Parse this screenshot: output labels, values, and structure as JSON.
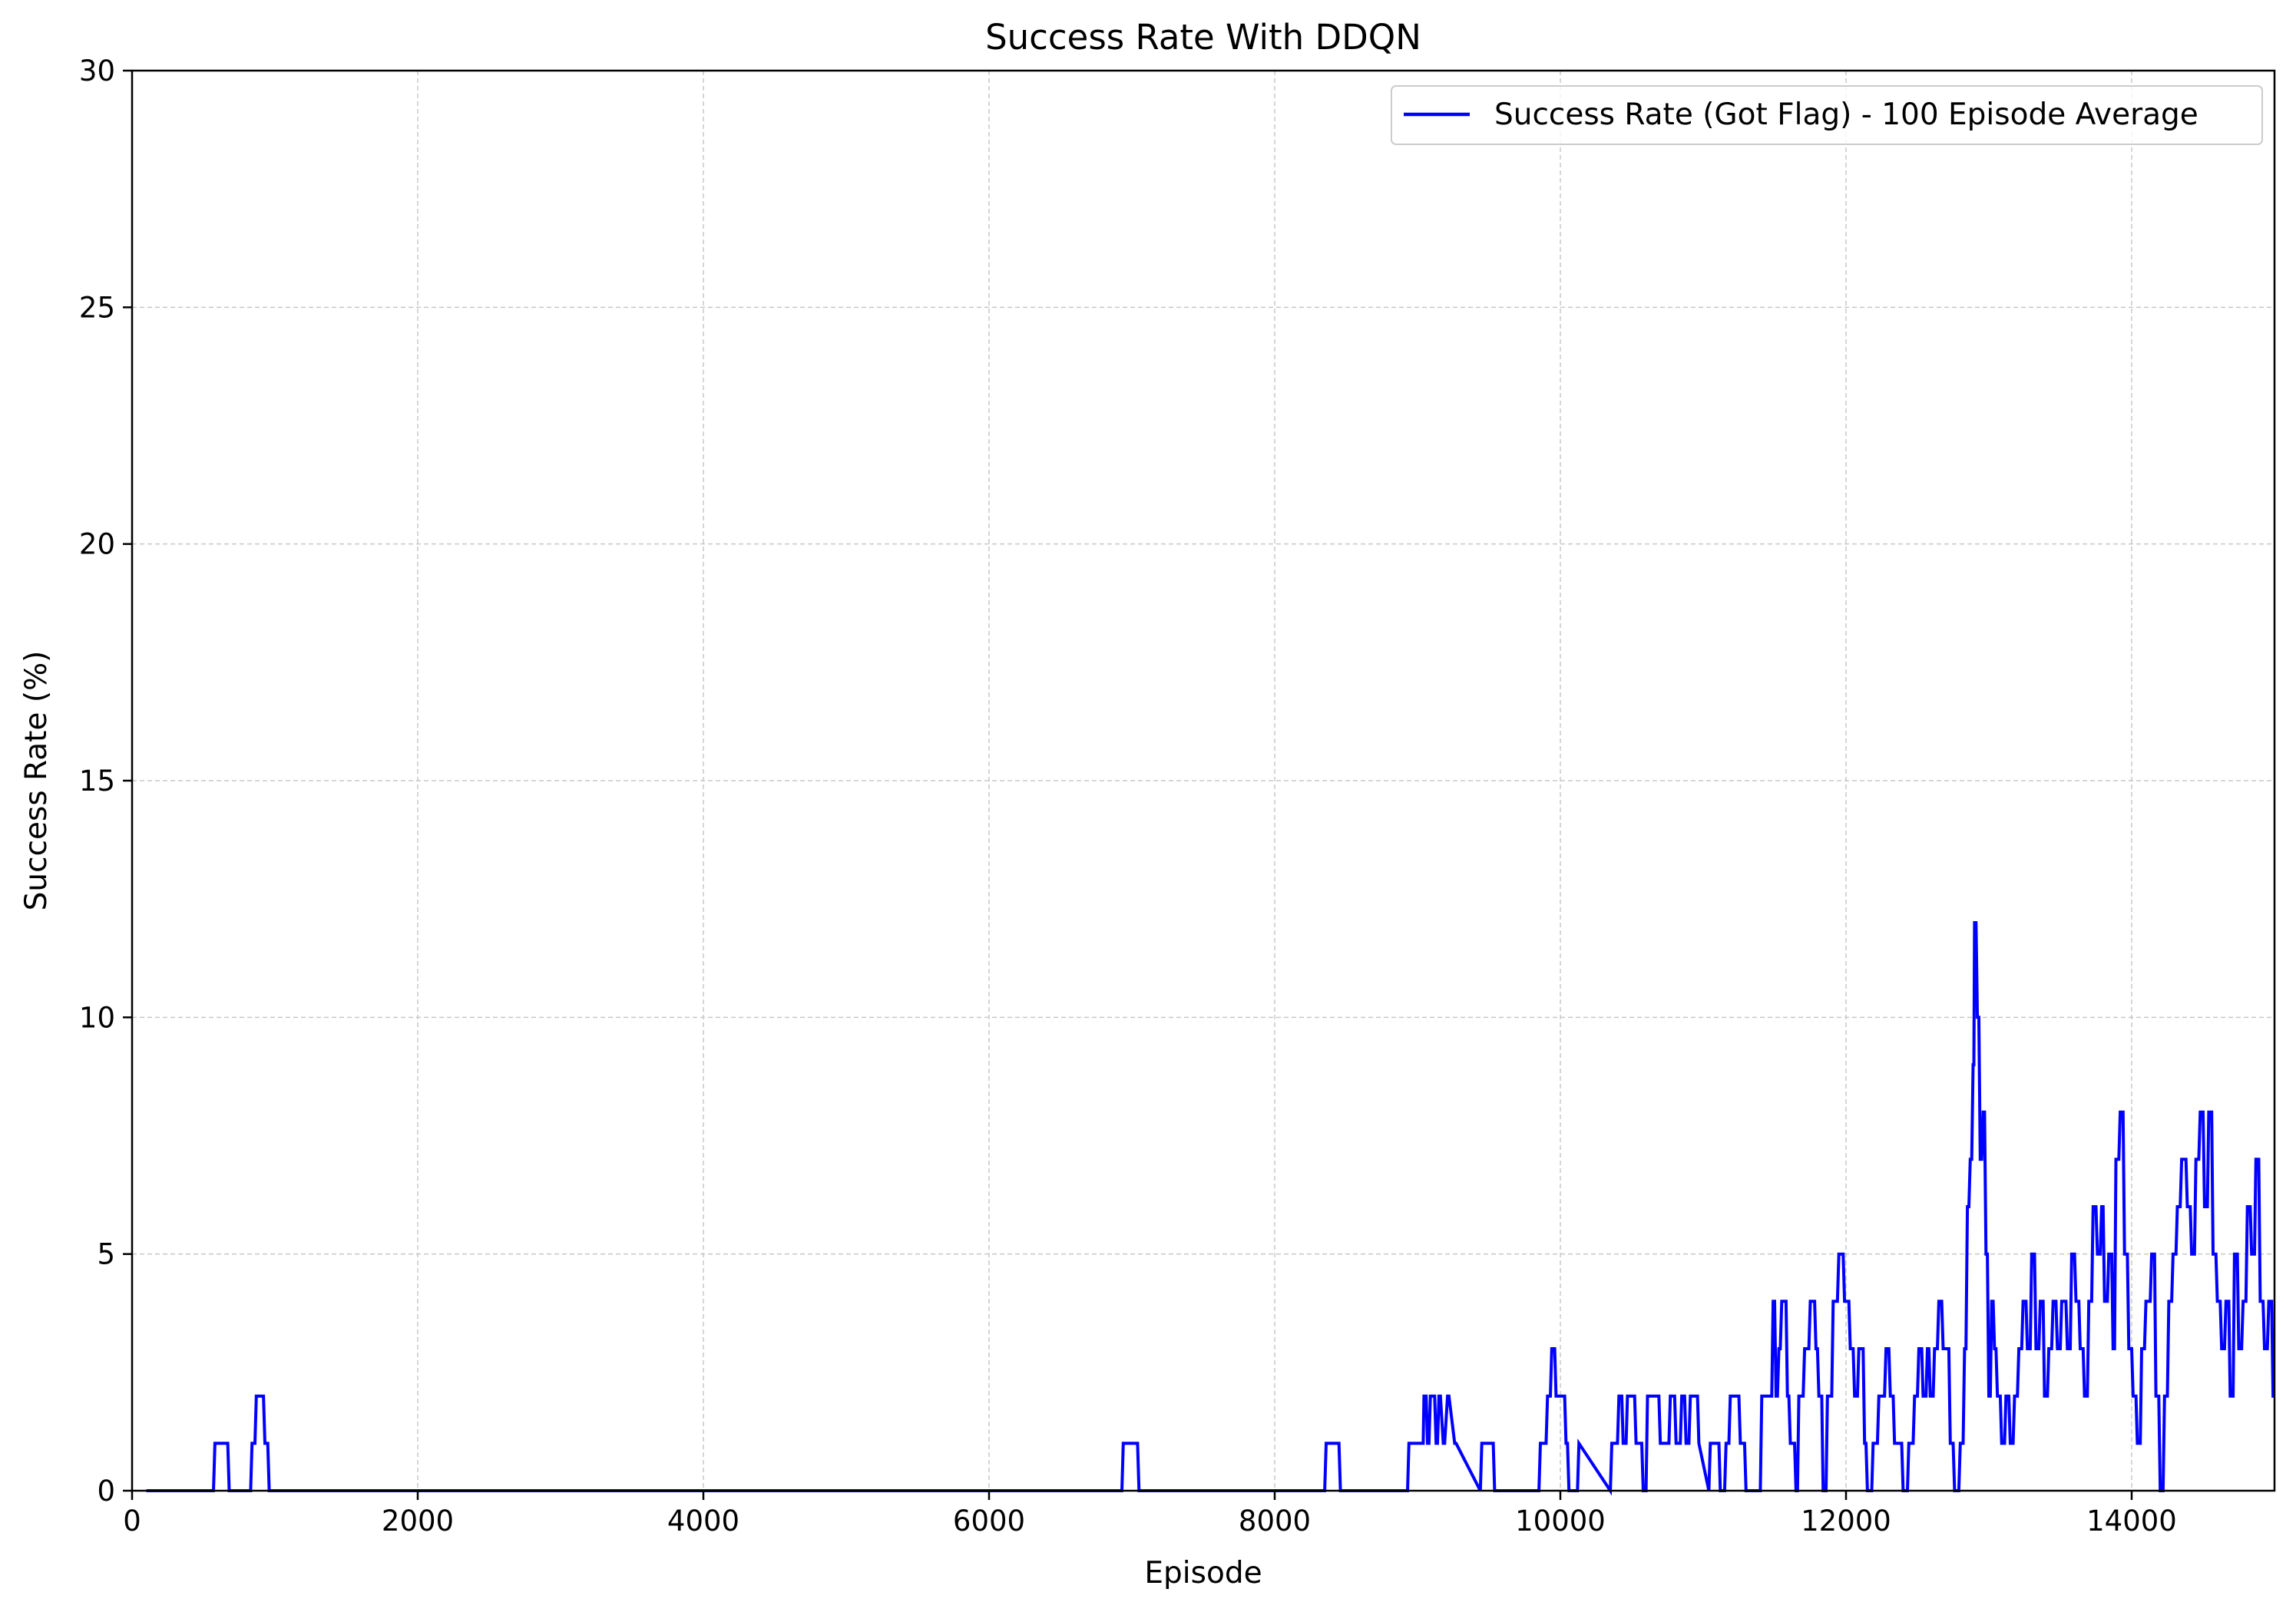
{
  "chart_data": {
    "type": "line",
    "title": "Success Rate With DDQN",
    "xlabel": "Episode",
    "ylabel": "Success Rate (%)",
    "xlim": [
      0,
      15000
    ],
    "ylim": [
      0,
      30
    ],
    "xticks": [
      0,
      2000,
      4000,
      6000,
      8000,
      10000,
      12000,
      14000
    ],
    "xtick_labels": [
      "0",
      "2000",
      "4000",
      "6000",
      "8000",
      "10000",
      "12000",
      "14000"
    ],
    "yticks": [
      0,
      5,
      10,
      15,
      20,
      25,
      30
    ],
    "ytick_labels": [
      "0",
      "5",
      "10",
      "15",
      "20",
      "25",
      "30"
    ],
    "grid": true,
    "legend_position": "upper right",
    "colors": {
      "series": "#0000ff",
      "grid": "#c8c8c8",
      "axis": "#000000"
    },
    "series": [
      {
        "name": "Success Rate (Got Flag) - 100 Episode Average",
        "x": [
          100,
          570,
          580,
          670,
          680,
          830,
          840,
          860,
          870,
          920,
          930,
          950,
          960,
          6930,
          6940,
          7040,
          7050,
          8350,
          8360,
          8450,
          8460,
          8930,
          8940,
          9040,
          9045,
          9060,
          9070,
          9080,
          9090,
          9120,
          9130,
          9140,
          9150,
          9160,
          9180,
          9190,
          9210,
          9220,
          9260,
          9270,
          9440,
          9450,
          9530,
          9540,
          9850,
          9860,
          9900,
          9910,
          9930,
          9940,
          9960,
          9970,
          10030,
          10040,
          10050,
          10060,
          10120,
          10130,
          10350,
          10360,
          10400,
          10410,
          10430,
          10440,
          10460,
          10470,
          10520,
          10530,
          10570,
          10580,
          10600,
          10610,
          10690,
          10700,
          10760,
          10770,
          10800,
          10810,
          10840,
          10850,
          10870,
          10880,
          10900,
          10910,
          10960,
          10970,
          11040,
          11050,
          11110,
          11120,
          11150,
          11160,
          11180,
          11190,
          11250,
          11260,
          11290,
          11300,
          11400,
          11410,
          11480,
          11490,
          11500,
          11510,
          11520,
          11530,
          11540,
          11550,
          11580,
          11590,
          11600,
          11610,
          11640,
          11650,
          11660,
          11670,
          11700,
          11710,
          11740,
          11750,
          11780,
          11790,
          11800,
          11810,
          11830,
          11840,
          11860,
          11870,
          11900,
          11910,
          11940,
          11950,
          11980,
          11990,
          12020,
          12030,
          12050,
          12060,
          12080,
          12090,
          12120,
          12130,
          12140,
          12150,
          12180,
          12190,
          12220,
          12230,
          12270,
          12280,
          12300,
          12310,
          12330,
          12340,
          12390,
          12400,
          12430,
          12440,
          12470,
          12480,
          12500,
          12510,
          12530,
          12540,
          12560,
          12570,
          12580,
          12590,
          12610,
          12620,
          12640,
          12650,
          12670,
          12680,
          12720,
          12730,
          12750,
          12760,
          12790,
          12800,
          12820,
          12830,
          12840,
          12850,
          12860,
          12870,
          12880,
          12890,
          12895,
          12900,
          12910,
          12920,
          12930,
          12940,
          12950,
          12960,
          12970,
          12980,
          12990,
          13000,
          13010,
          13020,
          13030,
          13040,
          13050,
          13060,
          13080,
          13090,
          13110,
          13120,
          13140,
          13150,
          13170,
          13180,
          13200,
          13210,
          13230,
          13240,
          13260,
          13270,
          13290,
          13300,
          13320,
          13330,
          13350,
          13360,
          13380,
          13390,
          13410,
          13420,
          13440,
          13450,
          13470,
          13480,
          13500,
          13510,
          13540,
          13550,
          13570,
          13580,
          13600,
          13610,
          13630,
          13640,
          13660,
          13670,
          13690,
          13700,
          13720,
          13730,
          13750,
          13760,
          13780,
          13790,
          13800,
          13810,
          13830,
          13840,
          13860,
          13870,
          13880,
          13890,
          13910,
          13920,
          13940,
          13950,
          13970,
          13980,
          14000,
          14010,
          14030,
          14040,
          14060,
          14070,
          14090,
          14100,
          14130,
          14140,
          14160,
          14170,
          14190,
          14200,
          14220,
          14230,
          14250,
          14260,
          14280,
          14290,
          14310,
          14320,
          14340,
          14350,
          14380,
          14390,
          14410,
          14420,
          14440,
          14450,
          14470,
          14480,
          14500,
          14510,
          14530,
          14540,
          14560,
          14570,
          14590,
          14600,
          14620,
          14630,
          14650,
          14660,
          14680,
          14690,
          14710,
          14720,
          14740,
          14750,
          14770,
          14780,
          14800,
          14810,
          14830,
          14840,
          14860,
          14870,
          14890,
          14900,
          14920,
          14930,
          14950,
          14960,
          14980,
          14990,
          15000
        ],
        "y": [
          0,
          0,
          1,
          1,
          0,
          0,
          1,
          1,
          2,
          2,
          1,
          1,
          0,
          0,
          1,
          1,
          0,
          0,
          1,
          1,
          0,
          0,
          1,
          1,
          2,
          2,
          1,
          1,
          2,
          2,
          1,
          1,
          2,
          2,
          1,
          1,
          2,
          2,
          1,
          1,
          0,
          1,
          1,
          0,
          0,
          1,
          1,
          2,
          2,
          3,
          3,
          2,
          2,
          1,
          1,
          0,
          0,
          1,
          0,
          1,
          1,
          2,
          2,
          1,
          1,
          2,
          2,
          1,
          1,
          0,
          0,
          2,
          2,
          1,
          1,
          2,
          2,
          1,
          1,
          2,
          2,
          1,
          1,
          2,
          2,
          1,
          0,
          1,
          1,
          0,
          0,
          1,
          1,
          2,
          2,
          1,
          1,
          0,
          0,
          2,
          2,
          4,
          4,
          2,
          2,
          3,
          3,
          4,
          4,
          2,
          2,
          1,
          1,
          0,
          0,
          2,
          2,
          3,
          3,
          4,
          4,
          3,
          3,
          2,
          2,
          0,
          0,
          2,
          2,
          4,
          4,
          5,
          5,
          4,
          4,
          3,
          3,
          2,
          2,
          3,
          3,
          1,
          1,
          0,
          0,
          1,
          1,
          2,
          2,
          3,
          3,
          2,
          2,
          1,
          1,
          0,
          0,
          1,
          1,
          2,
          2,
          3,
          3,
          2,
          2,
          3,
          3,
          2,
          2,
          3,
          3,
          4,
          4,
          3,
          3,
          1,
          1,
          0,
          0,
          1,
          1,
          3,
          3,
          6,
          6,
          7,
          7,
          9,
          9,
          12,
          12,
          10,
          10,
          7,
          7,
          8,
          8,
          5,
          5,
          2,
          2,
          4,
          4,
          3,
          3,
          2,
          2,
          1,
          1,
          2,
          2,
          1,
          1,
          2,
          2,
          3,
          3,
          4,
          4,
          3,
          3,
          5,
          5,
          3,
          3,
          4,
          4,
          2,
          2,
          3,
          3,
          4,
          4,
          3,
          3,
          4,
          4,
          3,
          3,
          5,
          5,
          4,
          4,
          3,
          3,
          2,
          2,
          4,
          4,
          6,
          6,
          5,
          5,
          6,
          6,
          4,
          4,
          5,
          5,
          3,
          3,
          7,
          7,
          8,
          8,
          5,
          5,
          3,
          3,
          2,
          2,
          1,
          1,
          3,
          3,
          4,
          4,
          5,
          5,
          2,
          2,
          0,
          0,
          2,
          2,
          4,
          4,
          5,
          5,
          6,
          6,
          7,
          7,
          6,
          6,
          5,
          5,
          7,
          7,
          8,
          8,
          6,
          6,
          8,
          8,
          5,
          5,
          4,
          4,
          3,
          3,
          4,
          4,
          2,
          2,
          5,
          5,
          3,
          3,
          4,
          4,
          6,
          6,
          5,
          5,
          7,
          7,
          4,
          4,
          3,
          3,
          4,
          4,
          2,
          2
        ]
      }
    ]
  }
}
